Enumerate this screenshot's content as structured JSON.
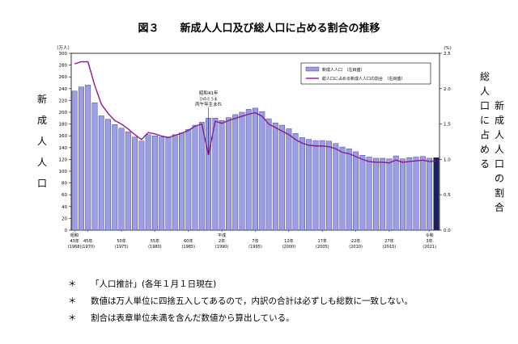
{
  "title": "図３　　新成人人口及び総人口に占める割合の推移",
  "left_label": "新成人人口",
  "right_label_1": "総人口に占める",
  "right_label_2": "新成人人口の割合",
  "notes": [
    {
      "mark": "＊",
      "text": "「人口推計」(各年１月１日現在)"
    },
    {
      "mark": "＊",
      "text": "数値は万人単位に四捨五入してあるので，内訳の合計は必ずしも総数に一致しない。"
    },
    {
      "mark": "＊",
      "text": "割合は表章単位未満を含んだ数値から算出している。"
    }
  ],
  "chart_data": {
    "type": "bar",
    "left_unit": "（万人）",
    "right_unit": "(%)",
    "ylim": [
      0,
      300
    ],
    "y2lim": [
      0,
      2.5
    ],
    "y_ticks": [
      "0",
      "20",
      "40",
      "60",
      "80",
      "100",
      "120",
      "140",
      "160",
      "180",
      "200",
      "220",
      "240",
      "260",
      "280",
      "300"
    ],
    "y2_ticks": [
      "0.0",
      "0.5",
      "1.0",
      "1.5",
      "2.0",
      "2.5"
    ],
    "legend": [
      "新成人人口　（左目盛）",
      "総人口に占める新成人人口の割合　（右目盛）"
    ],
    "legend_position": "top-right",
    "annotation": [
      "昭和41年",
      "ひのえうま",
      "丙午年生まれ"
    ],
    "bar_color": "#9b9ee6",
    "last_bar_color": "#1a1f5e",
    "line_color": "#8b1a8b",
    "x_labels": [
      {
        "i": 0,
        "l1": "昭和",
        "l2": "43年",
        "l3": "(1968)"
      },
      {
        "i": 2,
        "l1": "",
        "l2": "45年",
        "l3": "(1970)"
      },
      {
        "i": 7,
        "l1": "",
        "l2": "50年",
        "l3": "(1975)"
      },
      {
        "i": 12,
        "l1": "",
        "l2": "55年",
        "l3": "(1980)"
      },
      {
        "i": 17,
        "l1": "",
        "l2": "60年",
        "l3": "(1985)"
      },
      {
        "i": 22,
        "l1": "平成",
        "l2": "2年",
        "l3": "(1990)"
      },
      {
        "i": 27,
        "l1": "",
        "l2": "7年",
        "l3": "(1995)"
      },
      {
        "i": 32,
        "l1": "",
        "l2": "12年",
        "l3": "(2000)"
      },
      {
        "i": 37,
        "l1": "",
        "l2": "17年",
        "l3": "(2005)"
      },
      {
        "i": 42,
        "l1": "",
        "l2": "22年",
        "l3": "(2010)"
      },
      {
        "i": 47,
        "l1": "",
        "l2": "27年",
        "l3": "(2015)"
      },
      {
        "i": 53,
        "l1": "令和",
        "l2": "3年",
        "l3": "(2021)"
      }
    ],
    "series": [
      {
        "name": "新成人人口　（左目盛）",
        "values": [
          236,
          243,
          246,
          216,
          194,
          188,
          179,
          173,
          167,
          158,
          151,
          162,
          160,
          158,
          157,
          162,
          165,
          171,
          178,
          183,
          190,
          190,
          186,
          191,
          196,
          200,
          205,
          207,
          201,
          189,
          182,
          178,
          172,
          164,
          157,
          154,
          152,
          152,
          151,
          147,
          141,
          138,
          133,
          127,
          124,
          122,
          122,
          121,
          126,
          121,
          123,
          124,
          125,
          122,
          123
        ]
      },
      {
        "name": "総人口に占める新成人人口の割合　（右目盛）",
        "values": [
          2.35,
          2.38,
          2.38,
          2.05,
          1.78,
          1.65,
          1.55,
          1.5,
          1.43,
          1.35,
          1.28,
          1.38,
          1.36,
          1.33,
          1.31,
          1.34,
          1.37,
          1.41,
          1.47,
          1.5,
          1.06,
          1.54,
          1.51,
          1.55,
          1.58,
          1.61,
          1.64,
          1.66,
          1.61,
          1.5,
          1.45,
          1.4,
          1.35,
          1.28,
          1.23,
          1.2,
          1.19,
          1.19,
          1.18,
          1.15,
          1.1,
          1.08,
          1.04,
          1.0,
          0.97,
          0.96,
          0.96,
          0.95,
          0.99,
          0.96,
          0.97,
          0.98,
          0.99,
          0.97,
          0.98
        ]
      }
    ]
  }
}
